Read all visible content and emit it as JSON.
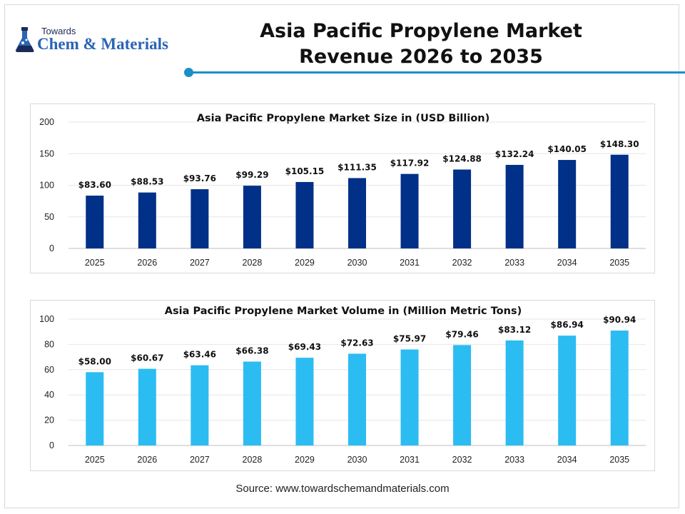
{
  "logo": {
    "top_text": "Towards",
    "main_text": "Chem & Materials"
  },
  "title": {
    "line1": "Asia Pacific Propylene Market",
    "line2": "Revenue 2026 to 2035"
  },
  "source": "Source: www.towardschemandmaterials.com",
  "colors": {
    "revenue_bar": "#003087",
    "volume_bar": "#2bbcf2",
    "accent": "#1c8fc7"
  },
  "chart_data": [
    {
      "type": "bar",
      "title": "Asia Pacific Propylene Market Size in (USD Billion)",
      "categories": [
        "2025",
        "2026",
        "2027",
        "2028",
        "2029",
        "2030",
        "2031",
        "2032",
        "2033",
        "2034",
        "2035"
      ],
      "values": [
        83.6,
        88.53,
        93.76,
        99.29,
        105.15,
        111.35,
        117.92,
        124.88,
        132.24,
        140.05,
        148.3
      ],
      "labels": [
        "$83.60",
        "$88.53",
        "$93.76",
        "$99.29",
        "$105.15",
        "$111.35",
        "$117.92",
        "$124.88",
        "$132.24",
        "$140.05",
        "$148.30"
      ],
      "ylim": [
        0,
        200
      ],
      "yticks": [
        "0",
        "50",
        "100",
        "150",
        "200"
      ],
      "grid": true,
      "color": "#003087"
    },
    {
      "type": "bar",
      "title": "Asia Pacific Propylene Market Volume in (Million Metric Tons)",
      "categories": [
        "2025",
        "2026",
        "2027",
        "2028",
        "2029",
        "2030",
        "2031",
        "2032",
        "2033",
        "2034",
        "2035"
      ],
      "values": [
        58.0,
        60.67,
        63.46,
        66.38,
        69.43,
        72.63,
        75.97,
        79.46,
        83.12,
        86.94,
        90.94
      ],
      "labels": [
        "$58.00",
        "$60.67",
        "$63.46",
        "$66.38",
        "$69.43",
        "$72.63",
        "$75.97",
        "$79.46",
        "$83.12",
        "$86.94",
        "$90.94"
      ],
      "ylim": [
        0,
        100
      ],
      "yticks": [
        "0",
        "20",
        "40",
        "60",
        "80",
        "100"
      ],
      "grid": true,
      "color": "#2bbcf2"
    }
  ]
}
